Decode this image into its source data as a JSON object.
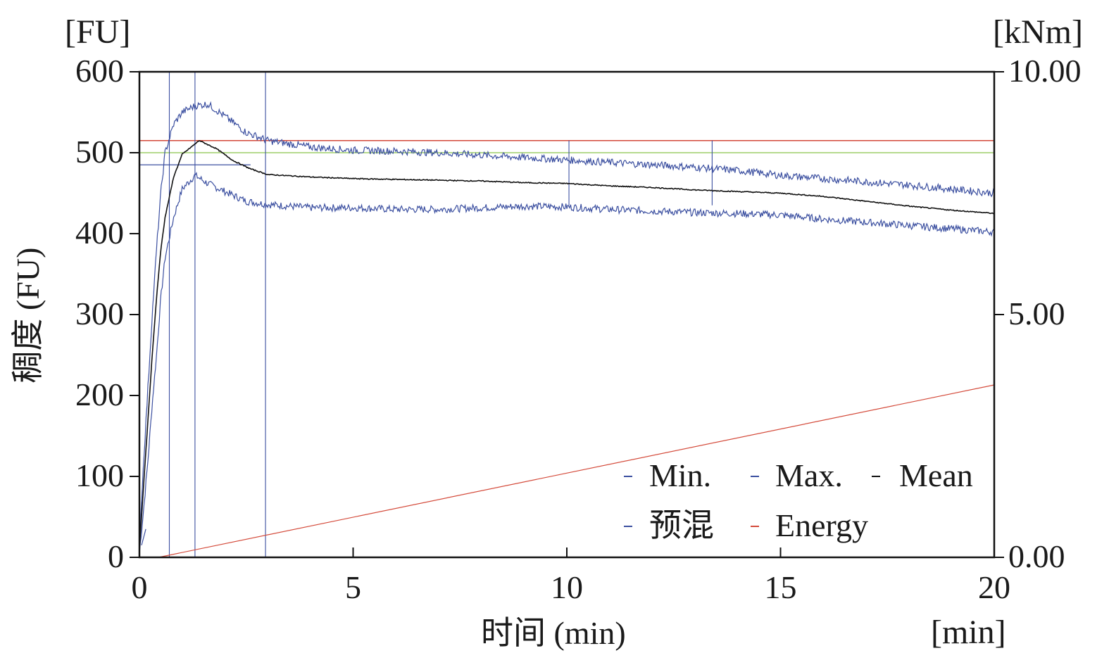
{
  "chart_data": {
    "type": "line",
    "left_unit": "[FU]",
    "right_unit": "[kNm]",
    "x_unit": "[min]",
    "xlabel": "时间 (min)",
    "ylabel": "稠度 (FU)",
    "xlim": [
      0,
      20
    ],
    "ylim_left": [
      0,
      600
    ],
    "ylim_right": [
      0,
      10
    ],
    "x_ticks": [
      "0",
      "5",
      "10",
      "15",
      "20"
    ],
    "y_ticks_left": [
      "0",
      "100",
      "200",
      "300",
      "400",
      "500",
      "600"
    ],
    "y_ticks_right": [
      "0.00",
      "5.00",
      "10.00"
    ],
    "grid": false,
    "legend_position": "bottom-right",
    "series": [
      {
        "name": "Min.",
        "color": "#3b4fa0",
        "axis": "left",
        "x": [
          0,
          0.1,
          0.2,
          0.3,
          0.4,
          0.5,
          0.6,
          0.8,
          1.0,
          1.3,
          1.6,
          2.0,
          2.5,
          3,
          4,
          5,
          6,
          7,
          8,
          9,
          10,
          11,
          12,
          13,
          14,
          15,
          16,
          17,
          18,
          19,
          20
        ],
        "values": [
          5,
          60,
          120,
          190,
          250,
          320,
          370,
          420,
          455,
          472,
          462,
          452,
          440,
          436,
          432,
          432,
          430,
          430,
          432,
          434,
          433,
          430,
          428,
          426,
          425,
          423,
          418,
          414,
          410,
          406,
          402
        ]
      },
      {
        "name": "Max.",
        "color": "#3b4fa0",
        "axis": "left",
        "x": [
          0,
          0.1,
          0.2,
          0.3,
          0.4,
          0.5,
          0.6,
          0.8,
          1.0,
          1.3,
          1.6,
          2.0,
          2.5,
          3,
          4,
          5,
          6,
          7,
          8,
          9,
          10,
          11,
          12,
          13,
          14,
          15,
          16,
          17,
          18,
          19,
          20
        ],
        "values": [
          20,
          120,
          210,
          300,
          380,
          450,
          500,
          535,
          550,
          558,
          560,
          545,
          525,
          515,
          507,
          503,
          502,
          500,
          497,
          494,
          491,
          488,
          485,
          482,
          478,
          472,
          468,
          464,
          460,
          455,
          450
        ]
      },
      {
        "name": "Mean",
        "color": "#111111",
        "axis": "left",
        "x": [
          0,
          0.1,
          0.2,
          0.3,
          0.4,
          0.5,
          0.6,
          0.8,
          1.0,
          1.4,
          1.8,
          2.2,
          2.6,
          3,
          4,
          5,
          6,
          7,
          8,
          9,
          10,
          11,
          12,
          13,
          14,
          15,
          16,
          17,
          18,
          19,
          20
        ],
        "values": [
          10,
          90,
          170,
          250,
          320,
          380,
          420,
          470,
          498,
          515,
          505,
          490,
          480,
          473,
          470,
          468,
          467,
          466,
          465,
          463,
          462,
          459,
          457,
          454,
          452,
          450,
          446,
          440,
          434,
          429,
          425
        ]
      },
      {
        "name": "预混",
        "color": "#3b4fa0",
        "axis": "left",
        "x": [
          0.05,
          0.1,
          0.15
        ],
        "values": [
          15,
          25,
          35
        ]
      },
      {
        "name": "Energy",
        "color": "#d44a3a",
        "axis": "right",
        "x": [
          0.45,
          20
        ],
        "values": [
          0.0,
          3.55
        ]
      }
    ],
    "reference_lines": {
      "red_horizontal_y": 515,
      "green_horizontal_y": 500,
      "blue_horizontal_y": 485,
      "blue_vertical_x": [
        0.7,
        1.3,
        2.95,
        10.05,
        13.4
      ]
    },
    "legend": {
      "row1": [
        "Min.",
        "Max.",
        "Mean"
      ],
      "row2": [
        "预混",
        "Energy"
      ]
    }
  }
}
